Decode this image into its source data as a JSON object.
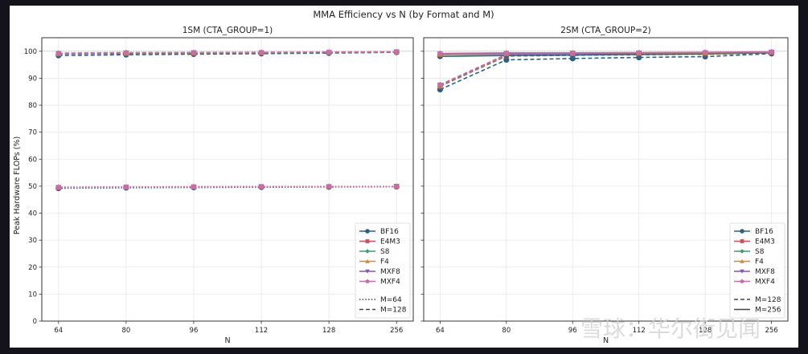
{
  "chart_data": {
    "type": "line",
    "title": "MMA Efficiency vs N (by Format and M)",
    "ylabel": "Peak Hardware FLOPs (%)",
    "ylim": [
      0,
      105
    ],
    "yticks": [
      0,
      10,
      20,
      30,
      40,
      50,
      60,
      70,
      80,
      90,
      100
    ],
    "grid": true,
    "reference_line": 100,
    "formats": [
      {
        "name": "BF16",
        "color": "#2a6184",
        "marker": "circle"
      },
      {
        "name": "E4M3",
        "color": "#cc4e5c",
        "marker": "square"
      },
      {
        "name": "S8",
        "color": "#3a9e6b",
        "marker": "diamond"
      },
      {
        "name": "F4",
        "color": "#d9862e",
        "marker": "triangle-up"
      },
      {
        "name": "MXF8",
        "color": "#7e57c2",
        "marker": "triangle-down"
      },
      {
        "name": "MXF4",
        "color": "#cf6aa6",
        "marker": "pentagon"
      }
    ],
    "panels": [
      {
        "title": "1SM (CTA_GROUP=1)",
        "xlabel": "N",
        "categories": [
          "64",
          "80",
          "96",
          "112",
          "128",
          "256"
        ],
        "legend": "bottom-right",
        "m_styles": [
          {
            "label": "M=64",
            "dash": "dotted"
          },
          {
            "label": "M=128",
            "dash": "dashed"
          }
        ],
        "series": [
          {
            "format": "BF16",
            "m": "M=64",
            "values": [
              49.2,
              49.4,
              49.5,
              49.6,
              49.7,
              49.8
            ]
          },
          {
            "format": "E4M3",
            "m": "M=64",
            "values": [
              49.5,
              49.6,
              49.7,
              49.8,
              49.8,
              49.9
            ]
          },
          {
            "format": "S8",
            "m": "M=64",
            "values": [
              49.6,
              49.7,
              49.7,
              49.8,
              49.8,
              49.9
            ]
          },
          {
            "format": "F4",
            "m": "M=64",
            "values": [
              49.6,
              49.7,
              49.8,
              49.8,
              49.9,
              49.9
            ]
          },
          {
            "format": "MXF8",
            "m": "M=64",
            "values": [
              49.5,
              49.6,
              49.7,
              49.8,
              49.8,
              49.9
            ]
          },
          {
            "format": "MXF4",
            "m": "M=64",
            "values": [
              49.6,
              49.7,
              49.8,
              49.8,
              49.9,
              49.9
            ]
          },
          {
            "format": "BF16",
            "m": "M=128",
            "values": [
              98.4,
              98.7,
              98.9,
              99.1,
              99.3,
              99.6
            ]
          },
          {
            "format": "E4M3",
            "m": "M=128",
            "values": [
              99.0,
              99.2,
              99.3,
              99.4,
              99.5,
              99.7
            ]
          },
          {
            "format": "S8",
            "m": "M=128",
            "values": [
              99.0,
              99.2,
              99.3,
              99.4,
              99.5,
              99.7
            ]
          },
          {
            "format": "F4",
            "m": "M=128",
            "values": [
              99.1,
              99.3,
              99.4,
              99.5,
              99.6,
              99.7
            ]
          },
          {
            "format": "MXF8",
            "m": "M=128",
            "values": [
              99.2,
              99.4,
              99.5,
              99.5,
              99.6,
              99.8
            ]
          },
          {
            "format": "MXF4",
            "m": "M=128",
            "values": [
              99.3,
              99.5,
              99.5,
              99.6,
              99.7,
              99.8
            ]
          }
        ]
      },
      {
        "title": "2SM (CTA_GROUP=2)",
        "xlabel": "N",
        "categories": [
          "64",
          "80",
          "96",
          "112",
          "128",
          "256"
        ],
        "legend": "bottom-right",
        "m_styles": [
          {
            "label": "M=128",
            "dash": "dashed"
          },
          {
            "label": "M=256",
            "dash": "solid"
          }
        ],
        "series": [
          {
            "format": "BF16",
            "m": "M=128",
            "values": [
              85.8,
              96.8,
              97.3,
              97.7,
              98.0,
              99.1
            ]
          },
          {
            "format": "E4M3",
            "m": "M=128",
            "values": [
              87.0,
              98.2,
              98.5,
              98.7,
              98.9,
              99.4
            ]
          },
          {
            "format": "S8",
            "m": "M=128",
            "values": [
              87.0,
              98.2,
              98.5,
              98.7,
              98.9,
              99.4
            ]
          },
          {
            "format": "F4",
            "m": "M=128",
            "values": [
              87.2,
              98.4,
              98.6,
              98.8,
              99.0,
              99.5
            ]
          },
          {
            "format": "MXF8",
            "m": "M=128",
            "values": [
              87.4,
              98.6,
              98.8,
              99.0,
              99.1,
              99.5
            ]
          },
          {
            "format": "MXF4",
            "m": "M=128",
            "values": [
              87.6,
              98.8,
              99.0,
              99.1,
              99.2,
              99.6
            ]
          },
          {
            "format": "BF16",
            "m": "M=256",
            "values": [
              98.1,
              98.4,
              98.6,
              98.8,
              99.0,
              99.4
            ]
          },
          {
            "format": "E4M3",
            "m": "M=256",
            "values": [
              98.8,
              99.0,
              99.1,
              99.2,
              99.3,
              99.6
            ]
          },
          {
            "format": "S8",
            "m": "M=256",
            "values": [
              98.8,
              99.0,
              99.1,
              99.2,
              99.3,
              99.6
            ]
          },
          {
            "format": "F4",
            "m": "M=256",
            "values": [
              98.9,
              99.1,
              99.2,
              99.3,
              99.4,
              99.6
            ]
          },
          {
            "format": "MXF8",
            "m": "M=256",
            "values": [
              99.0,
              99.2,
              99.3,
              99.4,
              99.5,
              99.7
            ]
          },
          {
            "format": "MXF4",
            "m": "M=256",
            "values": [
              99.2,
              99.4,
              99.4,
              99.5,
              99.6,
              99.8
            ]
          }
        ]
      }
    ]
  },
  "watermark": "雪球：华尔街见闻"
}
